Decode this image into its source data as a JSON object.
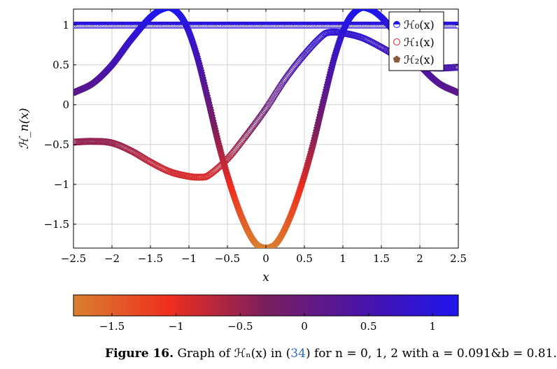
{
  "chart_data": {
    "type": "scatter",
    "title": "",
    "xlabel": "x",
    "ylabel": "ℋ_n(x)",
    "xlim": [
      -2.5,
      2.5
    ],
    "ylim": [
      -1.8,
      1.2
    ],
    "xticks": [
      -2.5,
      -2,
      -1.5,
      -1,
      -0.5,
      0,
      0.5,
      1,
      1.5,
      2,
      2.5
    ],
    "xtick_labels": [
      "−2.5",
      "−2",
      "−1.5",
      "−1",
      "−0.5",
      "0",
      "0.5",
      "1",
      "1.5",
      "2",
      "2.5"
    ],
    "yticks": [
      1,
      0.5,
      0,
      -0.5,
      -1,
      -1.5
    ],
    "ytick_labels": [
      "1",
      "0.5",
      "0",
      "−0.5",
      "−1",
      "−1.5"
    ],
    "grid": true,
    "legend_position": "top-right",
    "series": [
      {
        "name": "ℋ₀(x)",
        "marker": "half-filled-circle",
        "x": [
          -2.5,
          -2,
          -1.5,
          -1,
          -0.5,
          0,
          0.5,
          1,
          1.5,
          2,
          2.5
        ],
        "y": [
          1,
          1,
          1,
          1,
          1,
          1,
          1,
          1,
          1,
          1,
          1
        ]
      },
      {
        "name": "ℋ₁(x)",
        "marker": "open-circle",
        "x": [
          -2.5,
          -2.25,
          -2,
          -1.75,
          -1.5,
          -1.25,
          -1,
          -0.85,
          -0.75,
          -0.5,
          -0.25,
          0,
          0.25,
          0.5,
          0.75,
          0.85,
          1,
          1.25,
          1.5,
          1.75,
          2,
          2.25,
          2.5
        ],
        "y": [
          -0.47,
          -0.46,
          -0.48,
          -0.58,
          -0.72,
          -0.84,
          -0.9,
          -0.91,
          -0.89,
          -0.68,
          -0.38,
          -0.05,
          0.32,
          0.63,
          0.88,
          0.91,
          0.9,
          0.84,
          0.72,
          0.58,
          0.48,
          0.46,
          0.47
        ]
      },
      {
        "name": "ℋ₂(x)",
        "marker": "pentagon",
        "x": [
          -2.5,
          -2.25,
          -2,
          -1.75,
          -1.5,
          -1.35,
          -1.2,
          -1.05,
          -0.9,
          -0.75,
          -0.6,
          -0.45,
          -0.3,
          -0.15,
          0,
          0.15,
          0.3,
          0.45,
          0.6,
          0.75,
          0.9,
          1.05,
          1.2,
          1.35,
          1.5,
          1.75,
          2,
          2.25,
          2.5
        ],
        "y": [
          0.15,
          0.27,
          0.5,
          0.82,
          1.1,
          1.2,
          1.2,
          1.02,
          0.62,
          0.05,
          -0.55,
          -1.05,
          -1.45,
          -1.72,
          -1.8,
          -1.72,
          -1.45,
          -1.05,
          -0.55,
          0.05,
          0.62,
          1.02,
          1.2,
          1.2,
          1.1,
          0.82,
          0.5,
          0.27,
          0.15
        ]
      }
    ],
    "colorbar": {
      "range": [
        -1.8,
        1.2
      ],
      "ticks": [
        -1.5,
        -1,
        -0.5,
        0,
        0.5,
        1
      ],
      "tick_labels": [
        "−1.5",
        "−1",
        "−0.5",
        "0",
        "0.5",
        "1"
      ],
      "colors": [
        "#d98030",
        "#ee2e1e",
        "#7a1e5e",
        "#4a14a8",
        "#1e16ee"
      ]
    }
  },
  "legend": {
    "items": [
      "ℋ₀(x)",
      "ℋ₁(x)",
      "ℋ₂(x)"
    ]
  },
  "caption": {
    "label": "Figure 16.",
    "text_before": " Graph of ℋₙ(x) in (",
    "ref": "34",
    "text_after": ") for n = 0, 1, 2 with a = 0.091&b = 0.81."
  }
}
